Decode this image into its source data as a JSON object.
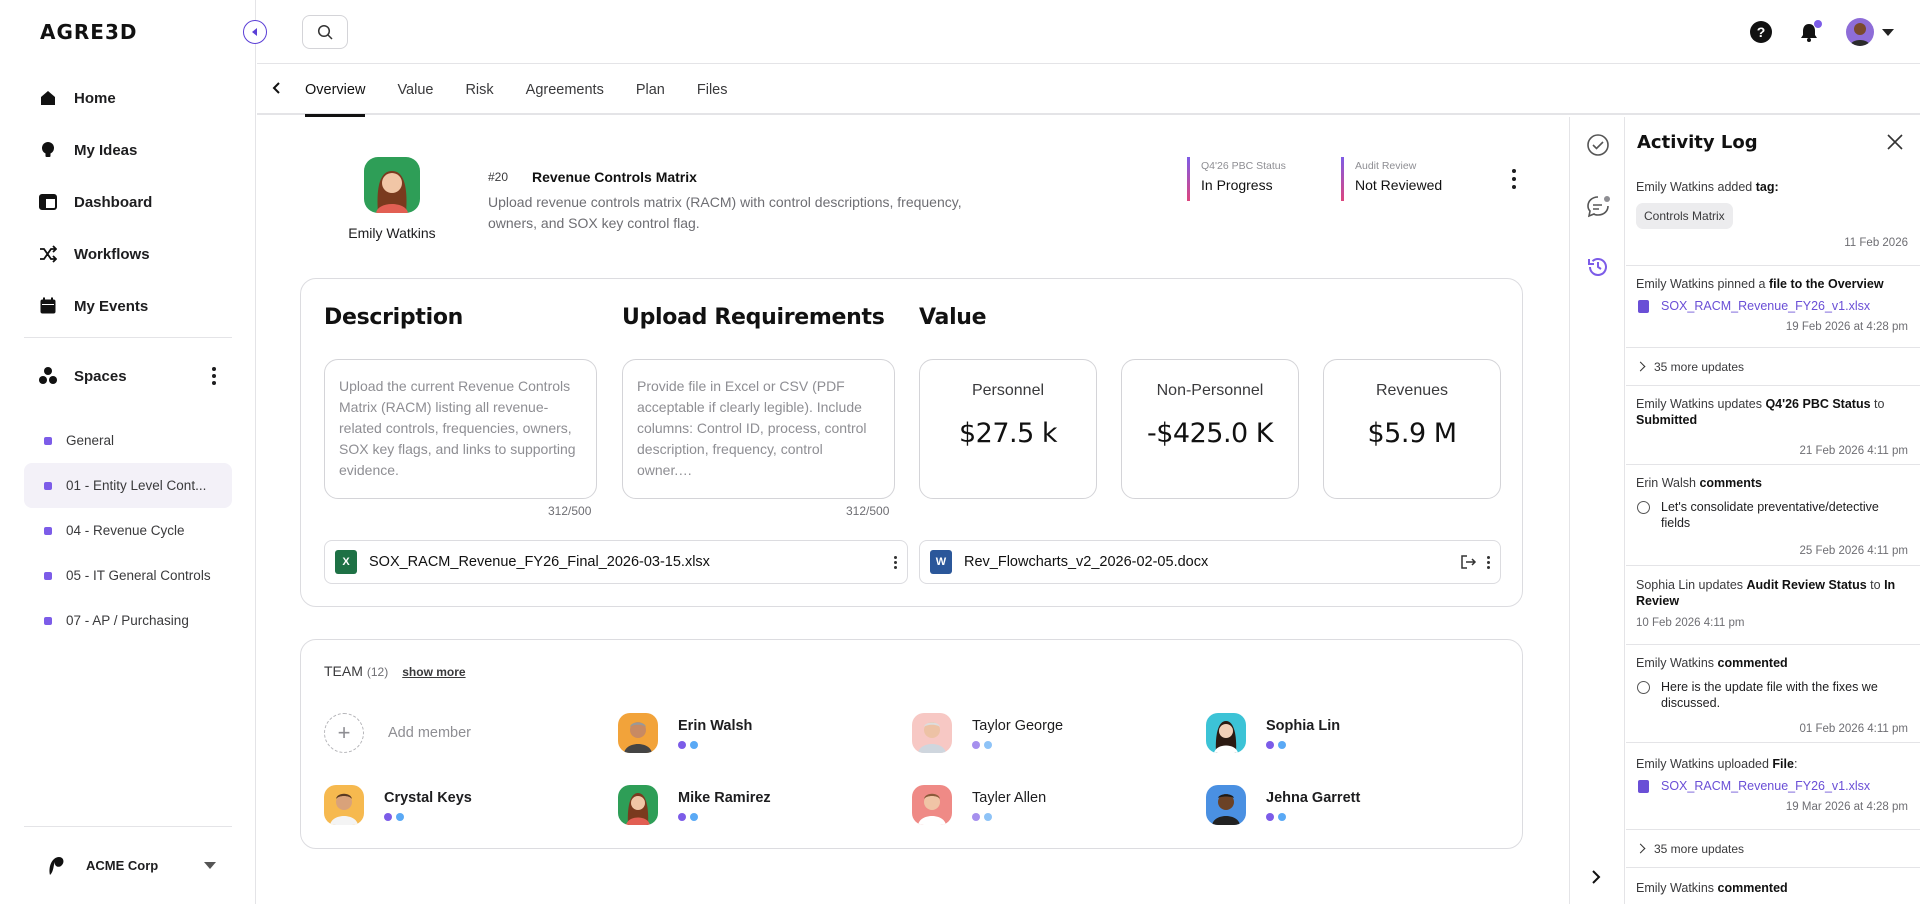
{
  "app": {
    "logo_text": "AGRE3D"
  },
  "sidebar": {
    "nav": [
      {
        "label": "Home",
        "icon": "home-icon"
      },
      {
        "label": "My Ideas",
        "icon": "lightbulb-icon"
      },
      {
        "label": "Dashboard",
        "icon": "dashboard-icon"
      },
      {
        "label": "Workflows",
        "icon": "shuffle-icon"
      },
      {
        "label": "My Events",
        "icon": "calendar-icon"
      }
    ],
    "spaces_label": "Spaces",
    "spaces": [
      {
        "label": "General",
        "active": false
      },
      {
        "label": "01 - Entity Level Cont...",
        "active": true
      },
      {
        "label": "04 - Revenue Cycle",
        "active": false
      },
      {
        "label": "05 - IT General Controls",
        "active": false
      },
      {
        "label": "07 - AP / Purchasing",
        "active": false
      }
    ],
    "org_label": "ACME Corp"
  },
  "tabs": [
    {
      "label": "Overview",
      "active": true
    },
    {
      "label": "Value",
      "active": false
    },
    {
      "label": "Risk",
      "active": false
    },
    {
      "label": "Agreements",
      "active": false
    },
    {
      "label": "Plan",
      "active": false
    },
    {
      "label": "Files",
      "active": false
    }
  ],
  "idea": {
    "owner_name": "Emily Watkins",
    "number": "#20",
    "title": "Revenue Controls Matrix",
    "description": "Upload revenue controls matrix (RACM) with control descriptions, frequency, owners, and SOX key control flag.",
    "statuses": [
      {
        "label": "Q4'26 PBC Status",
        "value": "In Progress"
      },
      {
        "label": "Audit Review",
        "value": "Not Reviewed"
      }
    ]
  },
  "sections": {
    "description": {
      "title": "Description",
      "text": "Upload the current Revenue Controls Matrix (RACM) listing all revenue-related controls, frequencies, owners, SOX key flags, and links to supporting evidence.",
      "counter": "312/500"
    },
    "upload": {
      "title": "Upload Requirements",
      "text": "Provide file in Excel or CSV (PDF acceptable if clearly legible). Include columns: Control ID, process, control description, frequency, control owner.…",
      "counter": "312/500"
    },
    "value": {
      "title": "Value",
      "cards": [
        {
          "label": "Personnel",
          "amount": "$27.5 k"
        },
        {
          "label": "Non-Personnel",
          "amount": "-$425.0 K"
        },
        {
          "label": "Revenues",
          "amount": "$5.9 M"
        }
      ]
    }
  },
  "files": [
    {
      "name": "SOX_RACM_Revenue_FY26_Final_2026-03-15.xlsx",
      "type": "excel",
      "color": "#1e7145"
    },
    {
      "name": "Rev_Flowcharts_v2_2026-02-05.docx",
      "type": "word",
      "color": "#2b579a"
    }
  ],
  "team": {
    "title": "TEAM",
    "count": "(12)",
    "show_more": "show more",
    "add_label": "Add member",
    "members": [
      {
        "name": "Erin Walsh",
        "bg": "#f2a33a"
      },
      {
        "name": "Taylor George",
        "bg": "#f7c8c4"
      },
      {
        "name": "Sophia Lin",
        "bg": "#3cc3d6"
      },
      {
        "name": "Crystal Keys",
        "bg": "#f6b94f"
      },
      {
        "name": "Mike Ramirez",
        "bg": "#2e9e57"
      },
      {
        "name": "Tayler Allen",
        "bg": "#ef8a86"
      },
      {
        "name": "Jehna Garrett",
        "bg": "#4a90e2"
      }
    ]
  },
  "activity": {
    "title": "Activity Log",
    "entries": [
      {
        "p1": "Emily Watkins added ",
        "b1": "tag:",
        "chip": "Controls Matrix",
        "date": "11 Feb 2026"
      },
      {
        "p1": "Emily Watkins pinned a ",
        "b1": "file to the Overview",
        "file": "SOX_RACM_Revenue_FY26_v1.xlsx",
        "date": "19 Feb 2026 at 4:28 pm"
      },
      {
        "more": "35 more updates"
      },
      {
        "p1": "Emily Watkins updates ",
        "b1": "Q4'26 PBC Status",
        "p2": " to ",
        "b2": "Submitted",
        "date": "21 Feb 2026 4:11 pm"
      },
      {
        "p1": "Erin Walsh ",
        "b1": "comments",
        "comment": "Let's consolidate preventative/detective fields",
        "date": "25 Feb 2026 4:11 pm"
      },
      {
        "p1": "Sophia Lin updates ",
        "b1": "Audit Review Status",
        "p2": " to ",
        "b2": "In Review",
        "date": "10 Feb 2026 4:11 pm",
        "date_left": true
      },
      {
        "p1": "Emily Watkins ",
        "b1": "commented",
        "comment": "Here is the update file with the fixes we discussed.",
        "date": "01 Feb 2026 4:11 pm"
      },
      {
        "p1": "Emily Watkins uploaded ",
        "b1": "File",
        "p2": ":",
        "file": "SOX_RACM_Revenue_FY26_v1.xlsx",
        "date": "19 Mar 2026 at 4:28 pm"
      },
      {
        "more": "35 more updates"
      },
      {
        "p1": "Emily Watkins ",
        "b1": "commented"
      }
    ]
  },
  "colors": {
    "accent": "#7c5ce8",
    "link": "#6a4fd6",
    "dot_primary": "#7c5ce8",
    "dot_secondary": "#5aa9f5"
  }
}
